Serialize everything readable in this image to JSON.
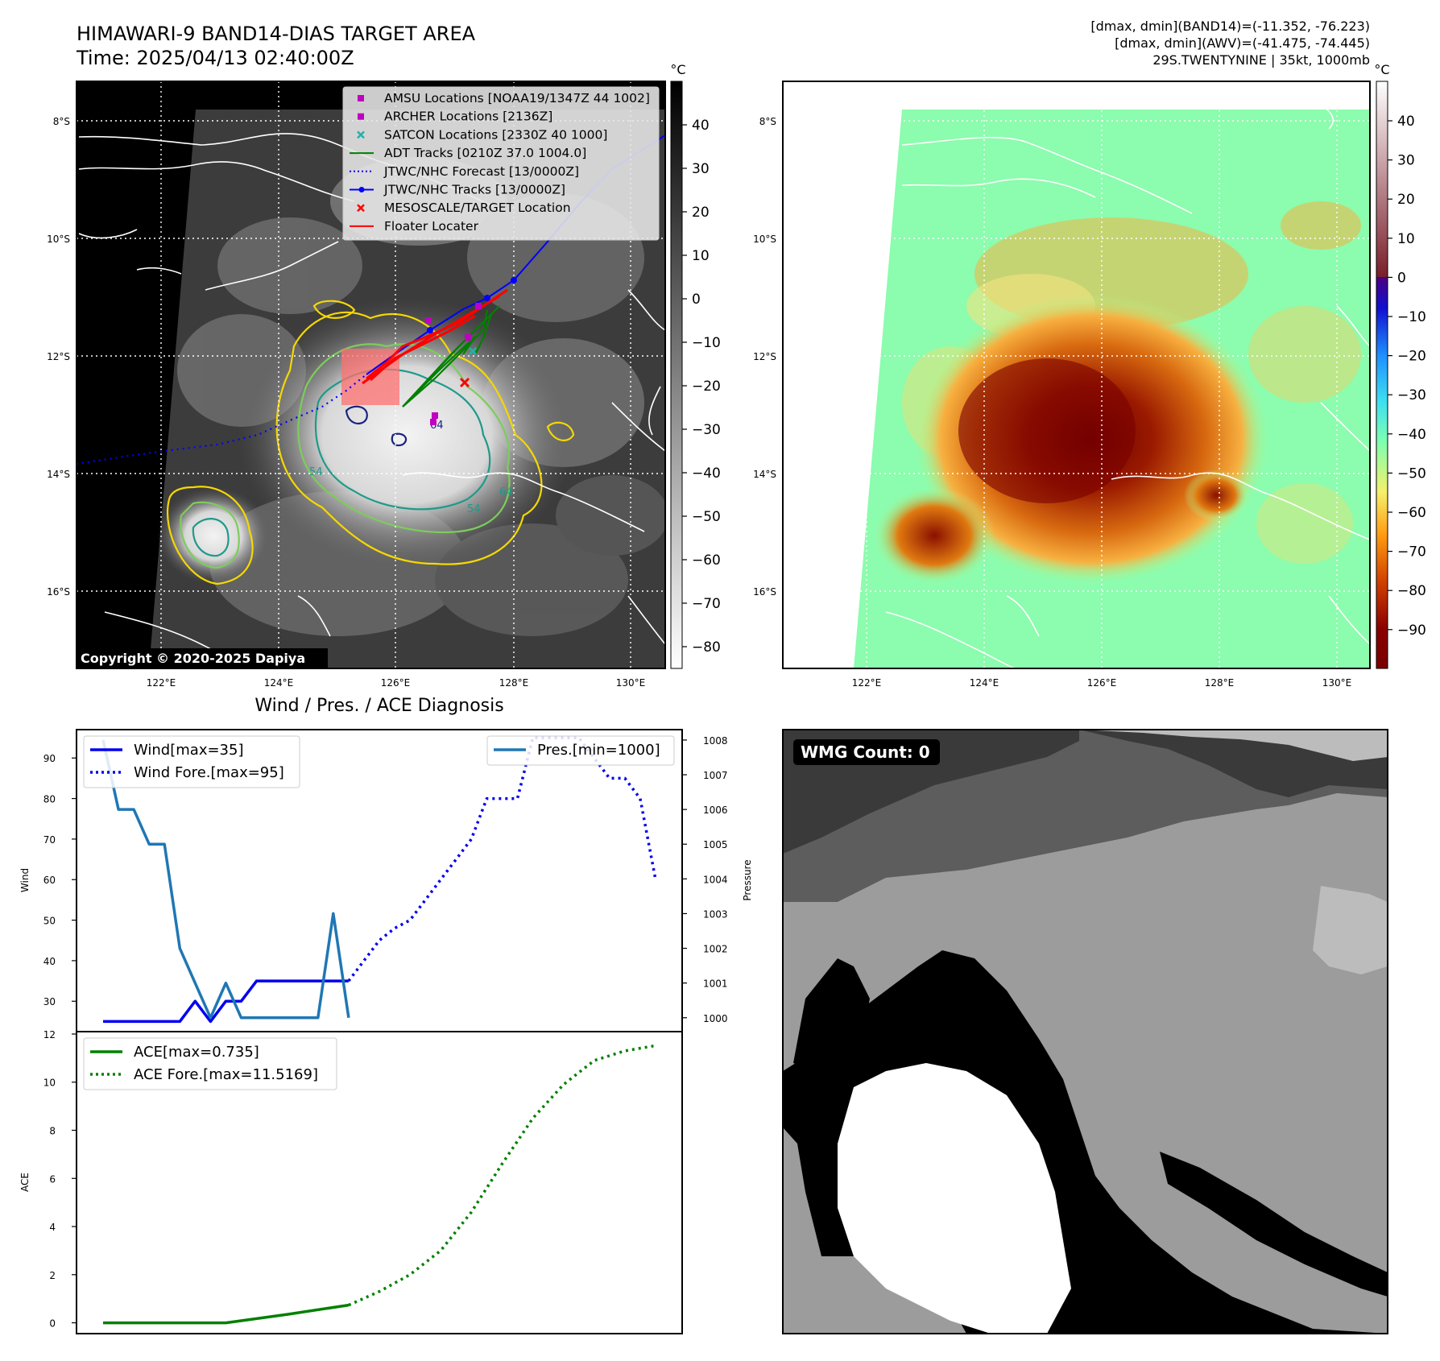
{
  "header": {
    "title_line1": "HIMAWARI-9 BAND14-DIAS TARGET AREA",
    "title_line2": "Time: 2025/04/13 02:40:00Z",
    "info_line1": "[dmax, dmin](BAND14)=(-11.352, -76.223)",
    "info_line2": "[dmax, dmin](AWV)=(-41.475, -74.445)",
    "info_line3": "29S.TWENTYNINE | 35kt, 1000mb"
  },
  "maps": {
    "lat_ticks": [
      "8°S",
      "10°S",
      "12°S",
      "14°S",
      "16°S"
    ],
    "lon_ticks": [
      "122°E",
      "124°E",
      "126°E",
      "128°E",
      "130°E"
    ],
    "copyright": "Copyright © 2020-2025 Dapiya",
    "colorbar_unit": "°C",
    "ir_colorbar_ticks": [
      "40",
      "30",
      "20",
      "10",
      "0",
      "−10",
      "−20",
      "−30",
      "−40",
      "−50",
      "−60",
      "−70",
      "−80"
    ],
    "awv_colorbar_ticks": [
      "40",
      "30",
      "20",
      "10",
      "0",
      "−10",
      "−20",
      "−30",
      "−40",
      "−50",
      "−60",
      "−70",
      "−80",
      "−90"
    ],
    "contour_labels": [
      "64",
      "54",
      "54",
      "64"
    ],
    "legend": [
      {
        "label": "AMSU Locations [NOAA19/1347Z 44 1002]",
        "color": "#c000c0",
        "marker": "square"
      },
      {
        "label": "ARCHER Locations [2136Z]",
        "color": "#c000c0",
        "marker": "square"
      },
      {
        "label": "SATCON Locations [2330Z 40 1000]",
        "color": "#20b2aa",
        "marker": "x"
      },
      {
        "label": "ADT Tracks [0210Z 37.0 1004.0]",
        "color": "#008000",
        "marker": "line"
      },
      {
        "label": "JTWC/NHC Forecast [13/0000Z]",
        "color": "#0000ff",
        "marker": "dotted"
      },
      {
        "label": "JTWC/NHC Tracks [13/0000Z]",
        "color": "#0000ff",
        "marker": "line-dot"
      },
      {
        "label": "MESOSCALE/TARGET Location",
        "color": "#ff0000",
        "marker": "x"
      },
      {
        "label": "Floater Locater",
        "color": "#ff0000",
        "marker": "line"
      }
    ]
  },
  "wmg": {
    "label": "WMG Count: 0"
  },
  "chart_data": [
    {
      "type": "line",
      "title": "Wind / Pres. / ACE Diagnosis",
      "ylabel": "Wind",
      "y2label": "Pressure",
      "ylim": [
        22.5,
        97
      ],
      "y2lim": [
        999.6,
        1008.3
      ],
      "yticks": [
        30,
        40,
        50,
        60,
        70,
        80,
        90
      ],
      "y2ticks": [
        1000,
        1001,
        1002,
        1003,
        1004,
        1005,
        1006,
        1007,
        1008
      ],
      "legend_left": "upper-left",
      "legend_right": "upper-right",
      "series": [
        {
          "name": "Wind[max=35]",
          "axis": "left",
          "style": "solid",
          "color": "#0000ee",
          "x": [
            0,
            1,
            2,
            3,
            4,
            5,
            6,
            7,
            8,
            9,
            10,
            11,
            12,
            13,
            14,
            15,
            16
          ],
          "values": [
            25,
            25,
            25,
            25,
            25,
            25,
            30,
            25,
            30,
            30,
            35,
            35,
            35,
            35,
            35,
            35,
            35
          ]
        },
        {
          "name": "Wind Fore.[max=95]",
          "axis": "left",
          "style": "dotted",
          "color": "#0000ee",
          "x": [
            16,
            17,
            18,
            19,
            20,
            21,
            22,
            23,
            24,
            25,
            26,
            27,
            28,
            29,
            30,
            31,
            32,
            33,
            34,
            35,
            36
          ],
          "values": [
            35,
            40,
            45,
            48,
            50,
            55,
            60,
            65,
            70,
            80,
            80,
            80,
            95,
            95,
            95,
            95,
            90,
            85,
            85,
            80,
            60
          ]
        },
        {
          "name": "Pres.[min=1000]",
          "axis": "right",
          "style": "solid",
          "color": "#1f77b4",
          "x": [
            0,
            1,
            2,
            3,
            4,
            5,
            6,
            7,
            8,
            9,
            10,
            11,
            12,
            13,
            14,
            15,
            16
          ],
          "values": [
            1008,
            1006,
            1006,
            1005,
            1005,
            1002,
            1001,
            1000,
            1001,
            1000,
            1000,
            1000,
            1000,
            1000,
            1000,
            1003,
            1000
          ]
        }
      ]
    },
    {
      "type": "line",
      "ylabel": "ACE",
      "ylim": [
        -0.45,
        12.1
      ],
      "yticks": [
        0,
        2,
        4,
        6,
        8,
        10,
        12
      ],
      "legend": "upper-left",
      "series": [
        {
          "name": "ACE[max=0.735]",
          "style": "solid",
          "color": "#008000",
          "x": [
            0,
            4,
            8,
            12,
            16
          ],
          "values": [
            0,
            0,
            0,
            0.35,
            0.735
          ]
        },
        {
          "name": "ACE Fore.[max=11.5169]",
          "style": "dotted",
          "color": "#008000",
          "x": [
            16,
            18,
            20,
            22,
            24,
            26,
            28,
            30,
            32,
            34,
            36
          ],
          "values": [
            0.735,
            1.3,
            2.0,
            3.0,
            4.6,
            6.6,
            8.5,
            9.9,
            10.9,
            11.3,
            11.5169
          ]
        }
      ]
    }
  ]
}
